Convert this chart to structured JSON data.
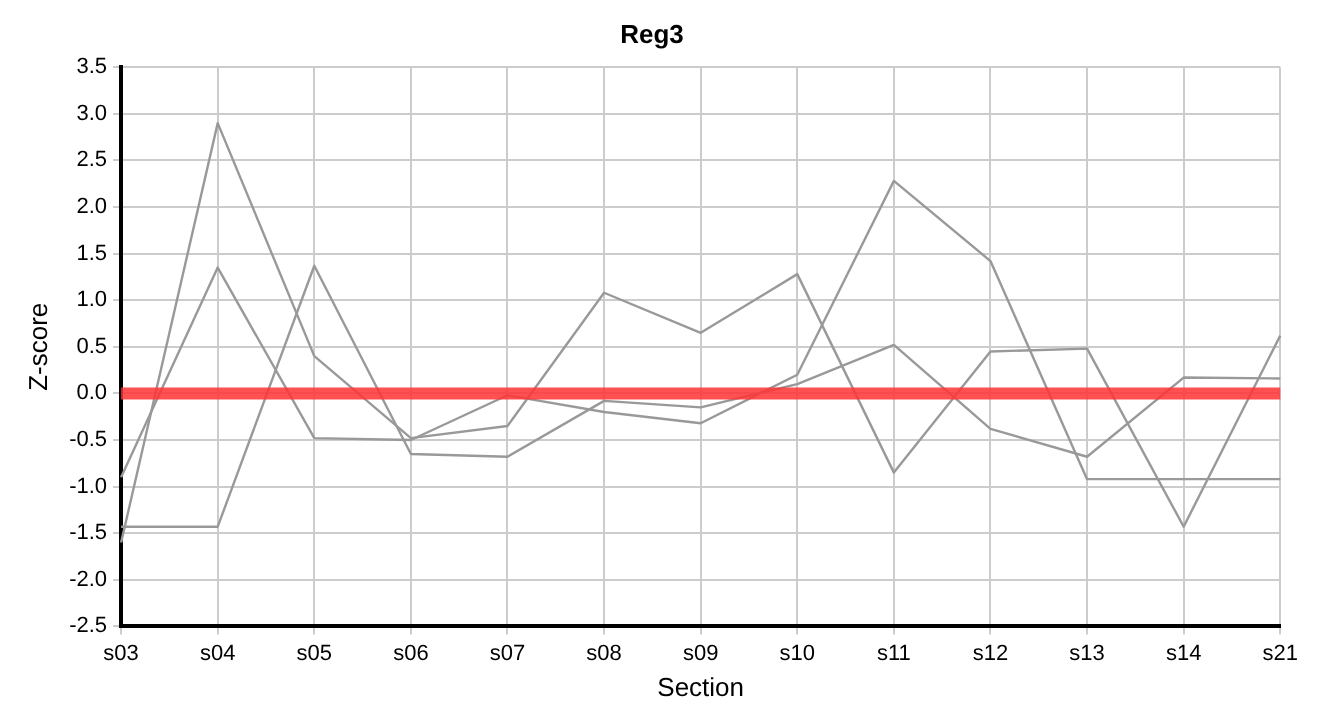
{
  "chart_data": {
    "type": "line",
    "title": "Reg3",
    "xlabel": "Section",
    "ylabel": "Z-score",
    "categories": [
      "s03",
      "s04",
      "s05",
      "s06",
      "s07",
      "s08",
      "s09",
      "s10",
      "s11",
      "s12",
      "s13",
      "s14",
      "s21"
    ],
    "series": [
      {
        "color": "#999999",
        "values": [
          -1.6,
          2.9,
          0.4,
          -0.48,
          -0.35,
          1.08,
          0.65,
          1.28,
          -0.85,
          0.45,
          0.48,
          -1.43,
          0.62
        ]
      },
      {
        "color": "#999999",
        "values": [
          -0.9,
          1.35,
          -0.48,
          -0.5,
          -0.02,
          -0.2,
          -0.32,
          0.2,
          2.28,
          1.42,
          -0.92,
          -0.92,
          -0.92
        ]
      },
      {
        "color": "#999999",
        "values": [
          -1.43,
          -1.43,
          1.37,
          -0.65,
          -0.68,
          -0.08,
          -0.15,
          0.1,
          0.52,
          -0.38,
          -0.68,
          0.17,
          0.16
        ]
      }
    ],
    "ylim": [
      -2.5,
      3.5
    ],
    "yticks": [
      {
        "value": -2.5,
        "label": "-2.5"
      },
      {
        "value": -2,
        "label": "-2.0"
      },
      {
        "value": -1.5,
        "label": "-1.5"
      },
      {
        "value": -1,
        "label": "-1.0"
      },
      {
        "value": -0.5,
        "label": "-0.5"
      },
      {
        "value": 0,
        "label": "0.0"
      },
      {
        "value": 0.5,
        "label": "0.5"
      },
      {
        "value": 1,
        "label": "1.0"
      },
      {
        "value": 1.5,
        "label": "1.5"
      },
      {
        "value": 2,
        "label": "2.0"
      },
      {
        "value": 2.5,
        "label": "2.5"
      },
      {
        "value": 3,
        "label": "3.0"
      },
      {
        "value": 3.5,
        "label": "3.5"
      }
    ],
    "ref_lines": [
      {
        "axis": "y",
        "value": 0,
        "color": "#ff3333"
      }
    ],
    "grid": true,
    "legend": false,
    "marker": "none",
    "line_style": "solid"
  }
}
